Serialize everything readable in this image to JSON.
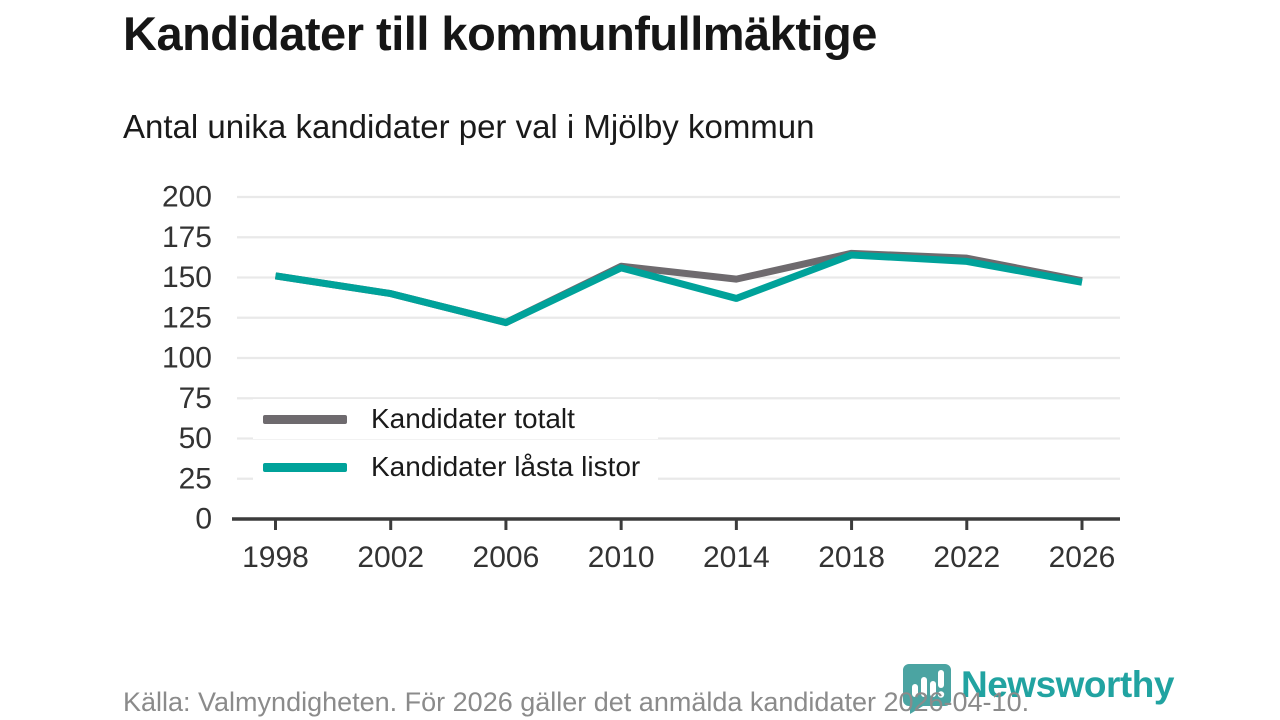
{
  "header": {
    "title": "Kandidater till kommunfullmäktige",
    "subtitle": "Antal unika kandidater per val i Mjölby kommun"
  },
  "footer": {
    "source": "Källa: Valmyndigheten. För 2026 gäller det anmälda kandidater 2026-04-10.",
    "logo_text": "Newsworthy"
  },
  "colors": {
    "series_total": "#6e6a6e",
    "series_locked": "#00a29a",
    "grid": "#e9e9e9",
    "axis": "#3c3c3c",
    "tick_label": "#333333",
    "logo_icon": "#4ba4a2",
    "logo_text": "#21a3a1"
  },
  "chart_data": {
    "type": "line",
    "title": "Kandidater till kommunfullmäktige",
    "subtitle": "Antal unika kandidater per val i Mjölby kommun",
    "x": [
      1998,
      2002,
      2006,
      2010,
      2014,
      2018,
      2022,
      2026
    ],
    "series": [
      {
        "name": "Kandidater totalt",
        "color": "#6e6a6e",
        "values": [
          151,
          140,
          122,
          157,
          149,
          165,
          162,
          148
        ]
      },
      {
        "name": "Kandidater låsta listor",
        "color": "#00a29a",
        "values": [
          151,
          140,
          122,
          156,
          137,
          164,
          160,
          147
        ]
      }
    ],
    "xlabel": "",
    "ylabel": "",
    "ylim": [
      0,
      200
    ],
    "yticks": [
      0,
      25,
      50,
      75,
      100,
      125,
      150,
      175,
      200
    ],
    "grid": "horizontal",
    "legend_position": "inside-bottom-left"
  }
}
